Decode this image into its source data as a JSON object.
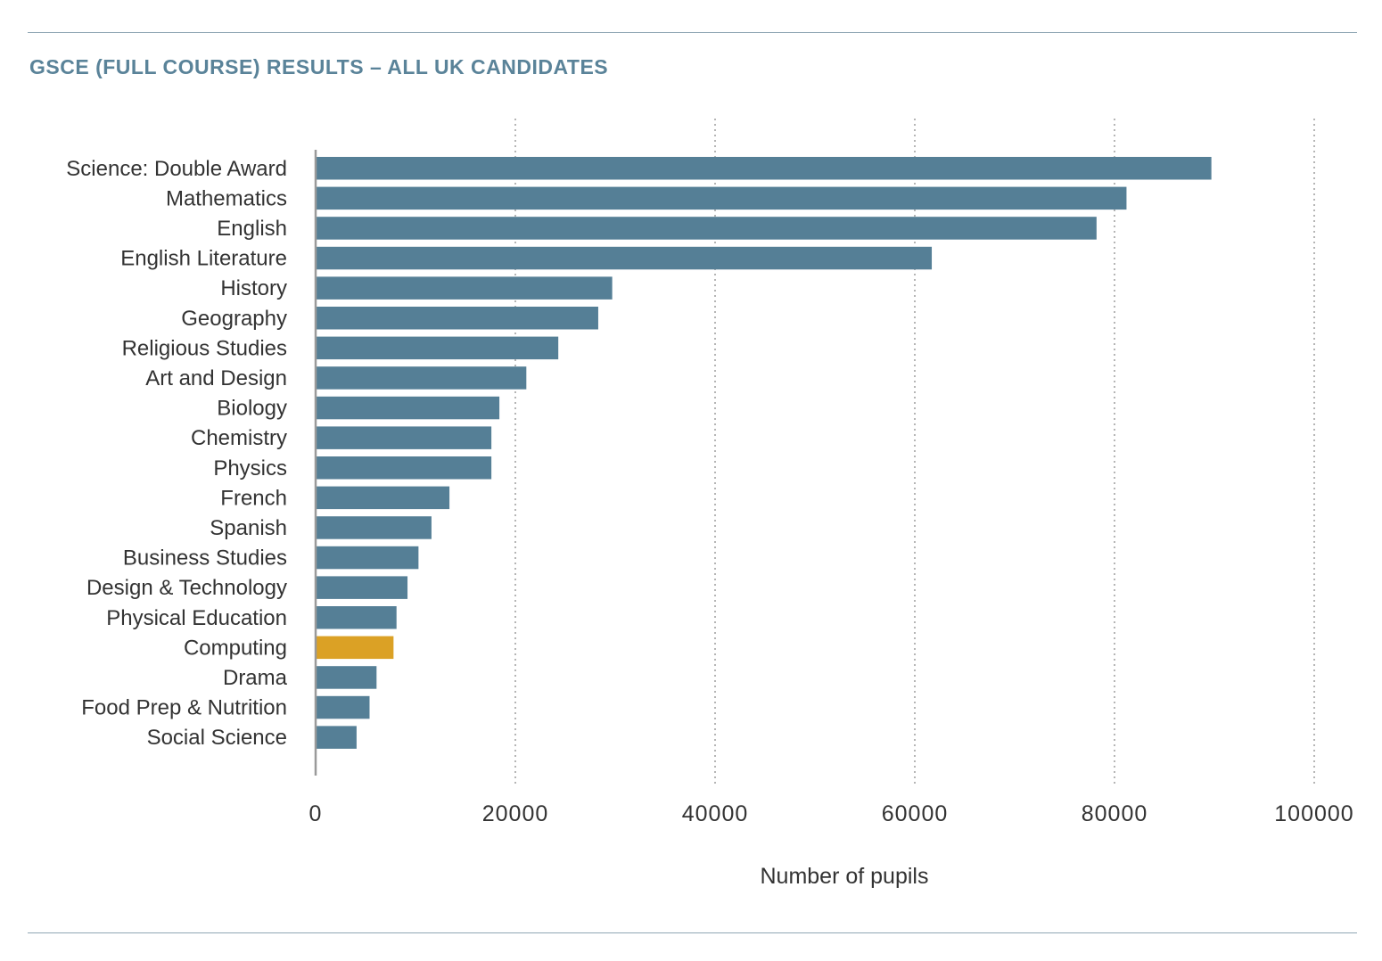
{
  "chart_data": {
    "type": "bar",
    "orientation": "horizontal",
    "title": "GSCE (FULL COURSE) RESULTS – ALL UK CANDIDATES",
    "xlabel": "Number of pupils",
    "ylabel": "",
    "xlim": [
      0,
      100000
    ],
    "x_ticks": [
      "0",
      "20000",
      "40000",
      "60000",
      "80000",
      "100000"
    ],
    "x_tick_values": [
      0,
      20000,
      40000,
      60000,
      80000,
      100000
    ],
    "grid": "vertical dotted",
    "categories": [
      "Science: Double Award",
      "Mathematics",
      "English",
      "English Literature",
      "History",
      "Geography",
      "Religious Studies",
      "Art and Design",
      "Biology",
      "Chemistry",
      "Physics",
      "French",
      "Spanish",
      "Business Studies",
      "Design & Technology",
      "Physical Education",
      "Computing",
      "Drama",
      "Food Prep & Nutrition",
      "Social Science"
    ],
    "values": [
      89700,
      81200,
      78200,
      61700,
      29700,
      28300,
      24300,
      21100,
      18400,
      17600,
      17600,
      13400,
      11600,
      10300,
      9200,
      8100,
      7800,
      6100,
      5400,
      4100
    ],
    "colors": {
      "default": "#557f96",
      "highlight": "#dba125"
    },
    "highlight_category": "Computing"
  }
}
